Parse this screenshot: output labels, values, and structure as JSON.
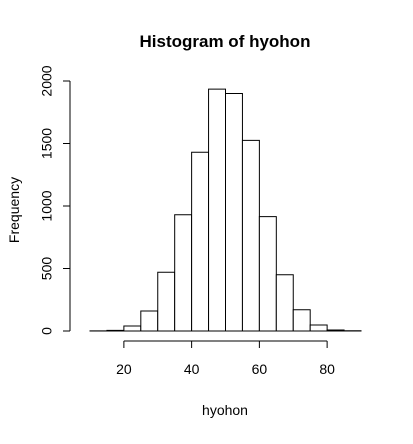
{
  "chart_data": {
    "type": "bar",
    "title": "Histogram of hyohon",
    "xlabel": "hyohon",
    "ylabel": "Frequency",
    "bins": [
      [
        10,
        15
      ],
      [
        15,
        20
      ],
      [
        20,
        25
      ],
      [
        25,
        30
      ],
      [
        30,
        35
      ],
      [
        35,
        40
      ],
      [
        40,
        45
      ],
      [
        45,
        50
      ],
      [
        50,
        55
      ],
      [
        55,
        60
      ],
      [
        60,
        65
      ],
      [
        65,
        70
      ],
      [
        70,
        75
      ],
      [
        75,
        80
      ],
      [
        80,
        85
      ],
      [
        85,
        90
      ]
    ],
    "values": [
      1,
      5,
      40,
      160,
      470,
      930,
      1430,
      1935,
      1900,
      1525,
      915,
      450,
      170,
      48,
      8,
      2
    ],
    "xlim": [
      10,
      90
    ],
    "ylim": [
      0,
      2000
    ],
    "xticks": [
      20,
      40,
      60,
      80
    ],
    "yticks": [
      0,
      500,
      1000,
      1500,
      2000
    ],
    "xtick_labels": [
      "20",
      "40",
      "60",
      "80"
    ],
    "ytick_labels": [
      "0",
      "500",
      "1000",
      "1500",
      "2000"
    ],
    "grid": false,
    "colors": {
      "bar_fill": "#ffffff",
      "bar_stroke": "#000000",
      "axis": "#000000"
    }
  }
}
